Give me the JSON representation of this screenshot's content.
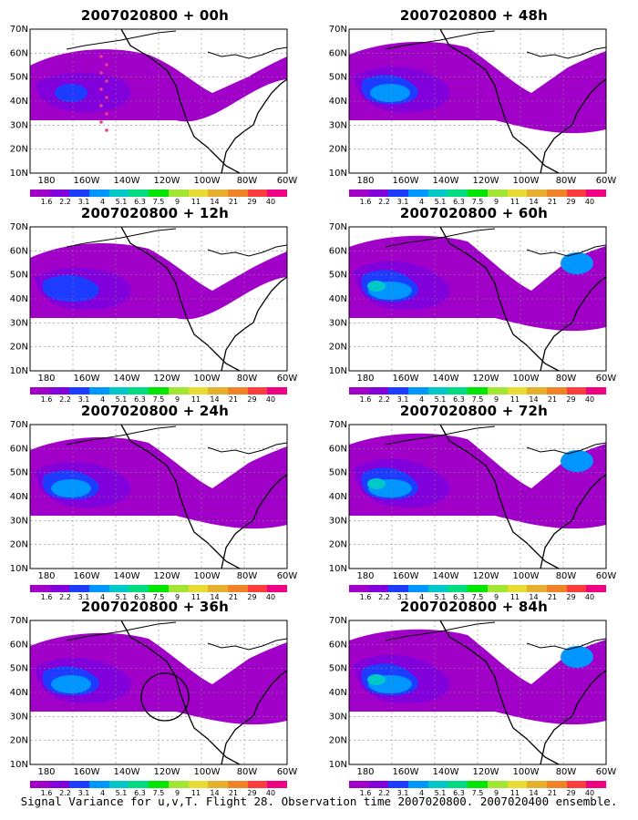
{
  "caption": "Signal Variance for u,v,T. Flight 28. Observation time 2007020800. 2007020400 ensemble.",
  "lat_ticks": [
    "70N",
    "60N",
    "50N",
    "40N",
    "30N",
    "20N",
    "10N"
  ],
  "lon_ticks": [
    "180",
    "160W",
    "140W",
    "120W",
    "100W",
    "80W",
    "60W"
  ],
  "legend": {
    "labels": [
      "1.6",
      "2.2",
      "3.1",
      "4",
      "5.1",
      "6.3",
      "7.5",
      "9",
      "11",
      "14",
      "21",
      "29",
      "40"
    ],
    "colors": [
      "#a000c8",
      "#8200dc",
      "#1e3cff",
      "#0096ff",
      "#00c8c8",
      "#00dc82",
      "#00e600",
      "#a0e632",
      "#e6dc32",
      "#e6af2d",
      "#f08228",
      "#fa3c3c",
      "#f00082"
    ]
  },
  "panels": [
    {
      "id": "p00h",
      "title": "2007020800 + 00h",
      "level": 0,
      "markers": "dots"
    },
    {
      "id": "p12h",
      "title": "2007020800 + 12h",
      "level": 1
    },
    {
      "id": "p24h",
      "title": "2007020800 + 24h",
      "level": 2
    },
    {
      "id": "p36h",
      "title": "2007020800 + 36h",
      "level": 2,
      "markers": "circle"
    },
    {
      "id": "p48h",
      "title": "2007020800 + 48h",
      "level": 2
    },
    {
      "id": "p60h",
      "title": "2007020800 + 60h",
      "level": 3
    },
    {
      "id": "p72h",
      "title": "2007020800 + 72h",
      "level": 3
    },
    {
      "id": "p84h",
      "title": "2007020800 + 84h",
      "level": 3
    }
  ]
}
